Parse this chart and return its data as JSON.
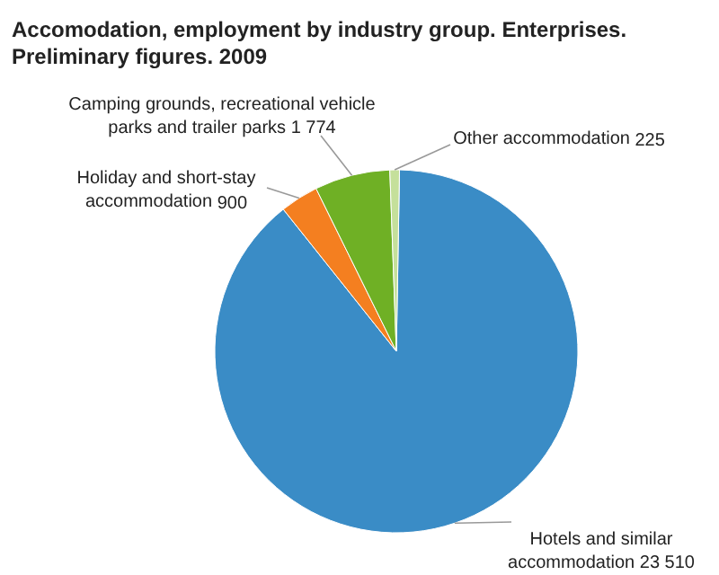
{
  "chart_data": {
    "type": "pie",
    "title": "Accomodation, employment by industry group. Enterprises.\nPreliminary figures. 2009",
    "categories": [
      "Hotels and similar\naccommodation",
      "Holiday and short-stay\naccommodation",
      "Camping grounds, recreational vehicle\nparks and trailer parks",
      "Other accommodation"
    ],
    "values": [
      23510,
      900,
      1774,
      225
    ],
    "value_labels": [
      "23 510",
      "900",
      "1 774",
      "225"
    ],
    "colors": [
      "#3a8cc6",
      "#f47f20",
      "#6fb025",
      "#c5e09b"
    ]
  }
}
